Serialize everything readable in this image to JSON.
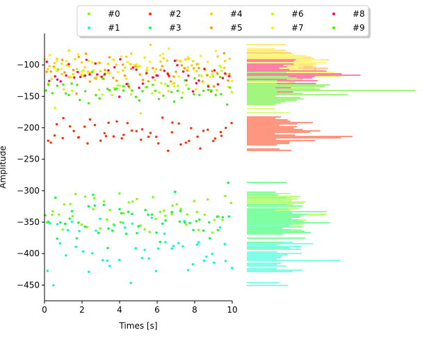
{
  "chart_data": {
    "type": "scatter",
    "xlabel": "Times [s]",
    "ylabel": "Amplitude",
    "xlim": [
      0,
      10
    ],
    "ylim": [
      -475,
      -50
    ],
    "x_ticks": [
      0,
      2,
      4,
      6,
      8,
      10
    ],
    "y_ticks": [
      -100,
      -150,
      -200,
      -250,
      -300,
      -350,
      -400,
      -450
    ],
    "grid": false,
    "legend_position": "top-center",
    "legend_columns": 5,
    "histogram": {
      "orientation": "horizontal",
      "position": "right of scatter",
      "y_range": [
        -475,
        -50
      ]
    },
    "series": [
      {
        "name": "#0",
        "color": "#7fff00",
        "y_center": -330,
        "y_spread": 20
      },
      {
        "name": "#1",
        "color": "#00ffcc",
        "y_center": -390,
        "y_spread": 25
      },
      {
        "name": "#2",
        "color": "#ff2e00",
        "y_center": -210,
        "y_spread": 12
      },
      {
        "name": "#3",
        "color": "#00ff44",
        "y_center": -345,
        "y_spread": 20
      },
      {
        "name": "#4",
        "color": "#ffd000",
        "y_center": -100,
        "y_spread": 12
      },
      {
        "name": "#5",
        "color": "#ff9900",
        "y_center": -115,
        "y_spread": 12
      },
      {
        "name": "#6",
        "color": "#bbff00",
        "y_center": -125,
        "y_spread": 18
      },
      {
        "name": "#7",
        "color": "#ffee00",
        "y_center": -105,
        "y_spread": 14
      },
      {
        "name": "#8",
        "color": "#ff0050",
        "y_center": -120,
        "y_spread": 12
      },
      {
        "name": "#9",
        "color": "#44ee00",
        "y_center": -140,
        "y_spread": 15
      }
    ]
  }
}
